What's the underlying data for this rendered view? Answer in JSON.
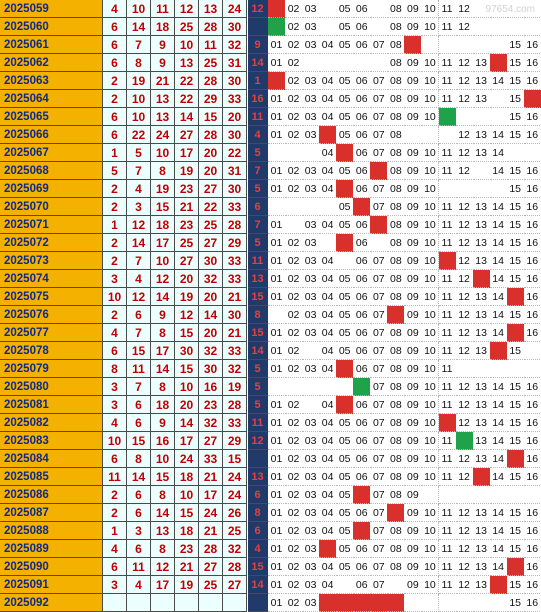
{
  "watermark": "97654.com",
  "rows": [
    {
      "issue": "2025059",
      "nums": [
        "4",
        "10",
        "11",
        "12",
        "13",
        "24"
      ],
      "ctr": "12",
      "cols": [
        "h",
        "02",
        "03",
        "",
        "05",
        "06",
        "",
        "08",
        "09",
        "10",
        "11",
        "12",
        "",
        "",
        "",
        ""
      ],
      "green": [],
      "hits": [
        0
      ]
    },
    {
      "issue": "2025060",
      "nums": [
        "6",
        "14",
        "18",
        "25",
        "28",
        "30",
        "1"
      ],
      "ctr": "",
      "cols": [
        "",
        "02",
        "03",
        "",
        "05",
        "06",
        "",
        "08",
        "09",
        "10",
        "11",
        "12",
        "",
        "",
        "",
        ""
      ],
      "green": [
        0
      ],
      "hits": []
    },
    {
      "issue": "2025061",
      "nums": [
        "6",
        "7",
        "9",
        "10",
        "11",
        "32"
      ],
      "ctr": "9",
      "cols": [
        "01",
        "02",
        "03",
        "04",
        "05",
        "06",
        "07",
        "08",
        "09",
        "",
        "",
        "",
        "",
        "",
        "15",
        "16"
      ],
      "green": [],
      "hits": [
        8
      ]
    },
    {
      "issue": "2025062",
      "nums": [
        "6",
        "8",
        "9",
        "13",
        "25",
        "31"
      ],
      "ctr": "14",
      "cols": [
        "01",
        "02",
        "",
        "",
        "",
        "",
        "",
        "08",
        "09",
        "10",
        "11",
        "12",
        "13",
        "14",
        "15",
        "16"
      ],
      "green": [],
      "hits": [
        13
      ]
    },
    {
      "issue": "2025063",
      "nums": [
        "2",
        "19",
        "21",
        "22",
        "28",
        "30"
      ],
      "ctr": "1",
      "cols": [
        "01",
        "02",
        "03",
        "04",
        "05",
        "06",
        "07",
        "08",
        "09",
        "10",
        "11",
        "12",
        "13",
        "14",
        "15",
        "16"
      ],
      "green": [],
      "hits": [
        0
      ]
    },
    {
      "issue": "2025064",
      "nums": [
        "2",
        "10",
        "13",
        "22",
        "29",
        "33"
      ],
      "ctr": "16",
      "cols": [
        "01",
        "02",
        "03",
        "04",
        "05",
        "06",
        "07",
        "08",
        "09",
        "10",
        "11",
        "12",
        "13",
        "",
        "15",
        "16"
      ],
      "green": [],
      "hits": [
        15
      ]
    },
    {
      "issue": "2025065",
      "nums": [
        "6",
        "10",
        "13",
        "14",
        "15",
        "20"
      ],
      "ctr": "11",
      "cols": [
        "01",
        "02",
        "03",
        "04",
        "05",
        "06",
        "07",
        "08",
        "09",
        "10",
        "",
        "",
        "",
        "",
        "15",
        "16"
      ],
      "green": [
        10
      ],
      "hits": []
    },
    {
      "issue": "2025066",
      "nums": [
        "6",
        "22",
        "24",
        "27",
        "28",
        "30"
      ],
      "ctr": "4",
      "cols": [
        "01",
        "02",
        "03",
        "04",
        "05",
        "06",
        "07",
        "08",
        "",
        "",
        "",
        "12",
        "13",
        "14",
        "15",
        "16"
      ],
      "green": [],
      "hits": [
        3
      ]
    },
    {
      "issue": "2025067",
      "nums": [
        "1",
        "5",
        "10",
        "17",
        "20",
        "22"
      ],
      "ctr": "5",
      "cols": [
        "",
        "",
        "",
        "04",
        "05",
        "06",
        "07",
        "08",
        "09",
        "10",
        "11",
        "12",
        "13",
        "14",
        "",
        ""
      ],
      "green": [],
      "hits": [
        4
      ]
    },
    {
      "issue": "2025068",
      "nums": [
        "5",
        "7",
        "8",
        "19",
        "20",
        "31"
      ],
      "ctr": "7",
      "cols": [
        "01",
        "02",
        "03",
        "04",
        "05",
        "06",
        "07",
        "08",
        "09",
        "10",
        "11",
        "12",
        "",
        "14",
        "15",
        "16"
      ],
      "green": [],
      "hits": [
        6
      ]
    },
    {
      "issue": "2025069",
      "nums": [
        "2",
        "4",
        "19",
        "23",
        "27",
        "30"
      ],
      "ctr": "5",
      "cols": [
        "01",
        "02",
        "03",
        "04",
        "05",
        "06",
        "07",
        "08",
        "09",
        "10",
        "",
        "",
        "",
        "",
        "15",
        "16"
      ],
      "green": [],
      "hits": [
        4
      ]
    },
    {
      "issue": "2025070",
      "nums": [
        "2",
        "3",
        "15",
        "21",
        "22",
        "33"
      ],
      "ctr": "6",
      "cols": [
        "",
        "",
        "",
        "",
        "05",
        "06",
        "07",
        "08",
        "09",
        "10",
        "11",
        "12",
        "13",
        "14",
        "15",
        "16"
      ],
      "green": [],
      "hits": [
        5
      ]
    },
    {
      "issue": "2025071",
      "nums": [
        "1",
        "12",
        "18",
        "23",
        "25",
        "28"
      ],
      "ctr": "7",
      "cols": [
        "01",
        "",
        "03",
        "04",
        "05",
        "06",
        "07",
        "08",
        "09",
        "10",
        "11",
        "12",
        "13",
        "14",
        "15",
        "16"
      ],
      "green": [],
      "hits": [
        6
      ]
    },
    {
      "issue": "2025072",
      "nums": [
        "2",
        "14",
        "17",
        "25",
        "27",
        "29"
      ],
      "ctr": "5",
      "cols": [
        "01",
        "02",
        "03",
        "",
        "05",
        "06",
        "",
        "08",
        "09",
        "10",
        "11",
        "12",
        "13",
        "14",
        "15",
        "16"
      ],
      "green": [],
      "hits": [
        4
      ]
    },
    {
      "issue": "2025073",
      "nums": [
        "2",
        "7",
        "10",
        "27",
        "30",
        "33"
      ],
      "ctr": "11",
      "cols": [
        "01",
        "02",
        "03",
        "04",
        "",
        "06",
        "07",
        "08",
        "09",
        "10",
        "11",
        "12",
        "13",
        "14",
        "15",
        "16"
      ],
      "green": [],
      "hits": [
        10
      ]
    },
    {
      "issue": "2025074",
      "nums": [
        "3",
        "4",
        "12",
        "20",
        "32",
        "33"
      ],
      "ctr": "13",
      "cols": [
        "01",
        "02",
        "03",
        "04",
        "05",
        "06",
        "07",
        "08",
        "09",
        "10",
        "11",
        "12",
        "13",
        "14",
        "15",
        "16"
      ],
      "green": [],
      "hits": [
        12
      ]
    },
    {
      "issue": "2025075",
      "nums": [
        "10",
        "12",
        "14",
        "19",
        "20",
        "21"
      ],
      "ctr": "15",
      "cols": [
        "01",
        "02",
        "03",
        "04",
        "05",
        "06",
        "07",
        "08",
        "09",
        "10",
        "11",
        "12",
        "13",
        "14",
        "15",
        "16"
      ],
      "green": [],
      "hits": [
        14
      ]
    },
    {
      "issue": "2025076",
      "nums": [
        "2",
        "6",
        "9",
        "12",
        "14",
        "30"
      ],
      "ctr": "8",
      "cols": [
        "",
        "02",
        "03",
        "04",
        "05",
        "06",
        "07",
        "08",
        "09",
        "10",
        "11",
        "12",
        "13",
        "14",
        "15",
        "16"
      ],
      "green": [],
      "hits": [
        7
      ]
    },
    {
      "issue": "2025077",
      "nums": [
        "4",
        "7",
        "8",
        "15",
        "20",
        "21"
      ],
      "ctr": "15",
      "cols": [
        "01",
        "02",
        "03",
        "04",
        "05",
        "06",
        "07",
        "08",
        "09",
        "10",
        "11",
        "12",
        "13",
        "14",
        "15",
        "16"
      ],
      "green": [],
      "hits": [
        14
      ]
    },
    {
      "issue": "2025078",
      "nums": [
        "6",
        "15",
        "17",
        "30",
        "32",
        "33"
      ],
      "ctr": "14",
      "cols": [
        "01",
        "02",
        "",
        "04",
        "05",
        "06",
        "07",
        "08",
        "09",
        "10",
        "11",
        "12",
        "13",
        "14",
        "15",
        ""
      ],
      "green": [],
      "hits": [
        13
      ]
    },
    {
      "issue": "2025079",
      "nums": [
        "8",
        "11",
        "14",
        "15",
        "30",
        "32"
      ],
      "ctr": "5",
      "cols": [
        "01",
        "02",
        "03",
        "04",
        "05",
        "06",
        "07",
        "08",
        "09",
        "10",
        "11",
        "",
        "",
        "",
        "",
        ""
      ],
      "green": [],
      "hits": [
        4
      ]
    },
    {
      "issue": "2025080",
      "nums": [
        "3",
        "7",
        "8",
        "10",
        "16",
        "19"
      ],
      "ctr": "5",
      "cols": [
        "",
        "",
        "",
        "",
        "",
        "",
        "07",
        "08",
        "09",
        "10",
        "11",
        "12",
        "13",
        "14",
        "15",
        "16"
      ],
      "green": [
        5
      ],
      "hits": []
    },
    {
      "issue": "2025081",
      "nums": [
        "3",
        "6",
        "18",
        "20",
        "23",
        "28"
      ],
      "ctr": "5",
      "cols": [
        "01",
        "02",
        "",
        "04",
        "05",
        "06",
        "07",
        "08",
        "09",
        "10",
        "11",
        "12",
        "13",
        "14",
        "15",
        "16"
      ],
      "green": [],
      "hits": [
        4
      ]
    },
    {
      "issue": "2025082",
      "nums": [
        "4",
        "6",
        "9",
        "14",
        "32",
        "33"
      ],
      "ctr": "11",
      "cols": [
        "01",
        "02",
        "03",
        "04",
        "05",
        "06",
        "07",
        "08",
        "09",
        "10",
        "11",
        "12",
        "13",
        "14",
        "15",
        "16"
      ],
      "green": [],
      "hits": [
        10
      ]
    },
    {
      "issue": "2025083",
      "nums": [
        "10",
        "15",
        "16",
        "17",
        "27",
        "29"
      ],
      "ctr": "12",
      "cols": [
        "01",
        "02",
        "03",
        "04",
        "05",
        "06",
        "07",
        "08",
        "09",
        "10",
        "11",
        "12",
        "13",
        "14",
        "15",
        "16"
      ],
      "green": [
        11
      ],
      "hits": []
    },
    {
      "issue": "2025084",
      "nums": [
        "6",
        "8",
        "10",
        "24",
        "33",
        "15"
      ],
      "ctr": "",
      "cols": [
        "01",
        "02",
        "03",
        "04",
        "05",
        "06",
        "07",
        "08",
        "09",
        "10",
        "11",
        "12",
        "13",
        "14",
        "15",
        "16"
      ],
      "green": [],
      "hits": [
        14
      ]
    },
    {
      "issue": "2025085",
      "nums": [
        "11",
        "14",
        "15",
        "18",
        "21",
        "24"
      ],
      "ctr": "13",
      "cols": [
        "01",
        "02",
        "03",
        "04",
        "05",
        "06",
        "07",
        "08",
        "09",
        "10",
        "11",
        "12",
        "13",
        "14",
        "15",
        "16"
      ],
      "green": [],
      "hits": [
        12
      ]
    },
    {
      "issue": "2025086",
      "nums": [
        "2",
        "6",
        "8",
        "10",
        "17",
        "24"
      ],
      "ctr": "6",
      "cols": [
        "01",
        "02",
        "03",
        "04",
        "05",
        "06",
        "07",
        "08",
        "09",
        "",
        "",
        "",
        "",
        "",
        "",
        ""
      ],
      "green": [],
      "hits": [
        5
      ]
    },
    {
      "issue": "2025087",
      "nums": [
        "2",
        "6",
        "14",
        "15",
        "24",
        "26"
      ],
      "ctr": "8",
      "cols": [
        "01",
        "02",
        "03",
        "04",
        "05",
        "06",
        "07",
        "08",
        "09",
        "10",
        "11",
        "12",
        "13",
        "14",
        "15",
        "16"
      ],
      "green": [],
      "hits": [
        7
      ]
    },
    {
      "issue": "2025088",
      "nums": [
        "1",
        "3",
        "13",
        "18",
        "21",
        "25"
      ],
      "ctr": "6",
      "cols": [
        "01",
        "02",
        "03",
        "04",
        "05",
        "06",
        "07",
        "08",
        "09",
        "10",
        "11",
        "12",
        "13",
        "14",
        "15",
        "16"
      ],
      "green": [],
      "hits": [
        5
      ]
    },
    {
      "issue": "2025089",
      "nums": [
        "4",
        "6",
        "8",
        "23",
        "28",
        "32"
      ],
      "ctr": "4",
      "cols": [
        "01",
        "02",
        "03",
        "04",
        "05",
        "06",
        "07",
        "08",
        "09",
        "10",
        "11",
        "12",
        "13",
        "14",
        "15",
        "16"
      ],
      "green": [],
      "hits": [
        3
      ]
    },
    {
      "issue": "2025090",
      "nums": [
        "6",
        "11",
        "12",
        "21",
        "27",
        "28"
      ],
      "ctr": "15",
      "cols": [
        "01",
        "02",
        "03",
        "04",
        "05",
        "06",
        "07",
        "08",
        "09",
        "10",
        "11",
        "12",
        "13",
        "14",
        "15",
        "16"
      ],
      "green": [],
      "hits": [
        14
      ]
    },
    {
      "issue": "2025091",
      "nums": [
        "3",
        "4",
        "17",
        "19",
        "25",
        "27"
      ],
      "ctr": "14",
      "cols": [
        "01",
        "02",
        "03",
        "04",
        "",
        "06",
        "07",
        "",
        "09",
        "10",
        "11",
        "12",
        "13",
        "14",
        "15",
        "16"
      ],
      "green": [],
      "hits": [
        13
      ]
    },
    {
      "issue": "2025092",
      "nums": [
        "",
        "",
        "",
        "",
        "",
        "",
        ""
      ],
      "ctr": "",
      "cols": [
        "01",
        "02",
        "03",
        "",
        "",
        "",
        "",
        "",
        "",
        "",
        "",
        "",
        "",
        "",
        "15",
        "16"
      ],
      "green": [],
      "hits": [
        3,
        4,
        5,
        6,
        7
      ]
    }
  ]
}
